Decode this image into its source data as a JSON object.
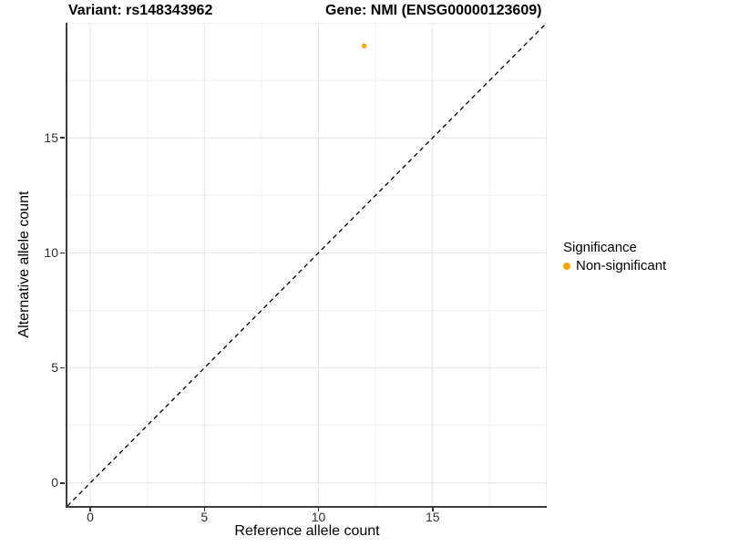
{
  "figure": {
    "background": "#ffffff"
  },
  "chart_data": {
    "type": "scatter",
    "titles": {
      "left": "Variant: rs148343962",
      "right": "Gene: NMI (ENSG00000123609)"
    },
    "xlabel": "Reference allele count",
    "ylabel": "Alternative allele count",
    "xlim": [
      -1,
      20
    ],
    "ylim": [
      -1,
      20
    ],
    "labeled_ticks": [
      0,
      5,
      10,
      15
    ],
    "major_gridlines": [
      0,
      5,
      10,
      15,
      20
    ],
    "minor_gridlines": [
      2.5,
      7.5,
      12.5,
      17.5
    ],
    "grid": true,
    "series": [
      {
        "name": "Non-significant",
        "color": "#FFA500",
        "points": [
          {
            "x": 12,
            "y": 19
          }
        ]
      }
    ],
    "reference_line": {
      "slope": 1,
      "intercept": 0,
      "style": "dashed",
      "color": "#000000"
    },
    "legend": {
      "title": "Significance",
      "position": "right",
      "items": [
        {
          "label": "Non-significant",
          "color": "#FFA500"
        }
      ]
    },
    "colors": {
      "grid_major": "#e4e4e4",
      "grid_minor": "#f1f1f1",
      "axis_line": "#3c3c3c",
      "tick_mark": "#333333",
      "tick_label": "#303030"
    }
  }
}
